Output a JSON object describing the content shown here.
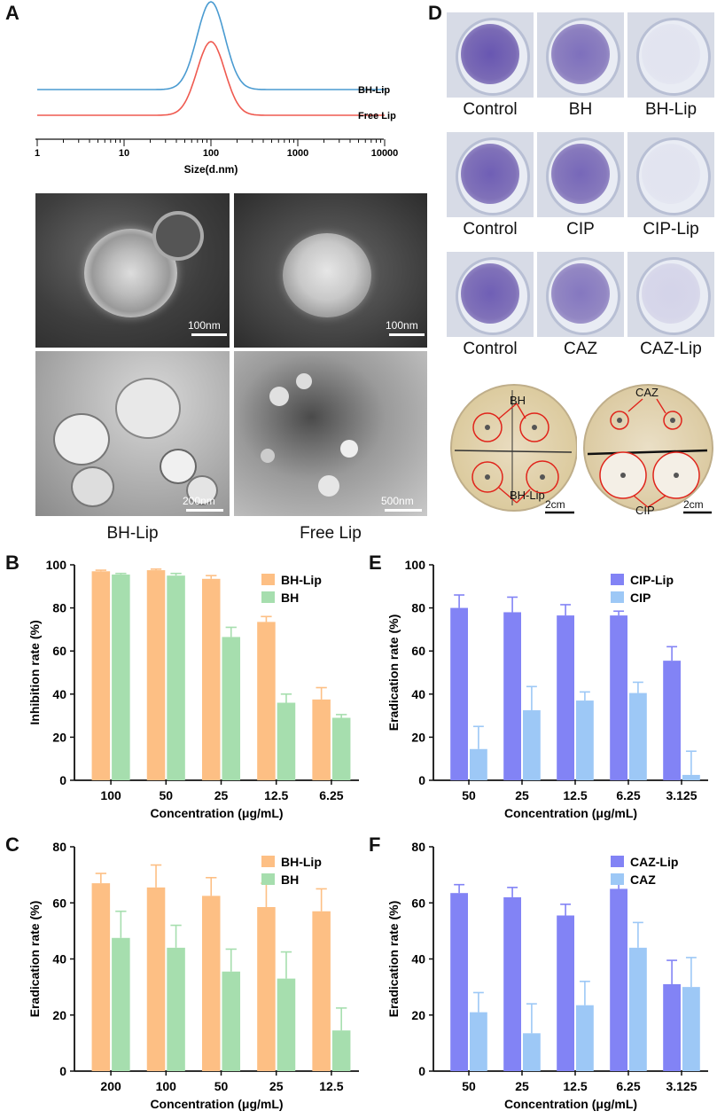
{
  "letters": {
    "a": "A",
    "b": "B",
    "c": "C",
    "d": "D",
    "e": "E",
    "f": "F"
  },
  "colors": {
    "orange": "#fdbf84",
    "green": "#a6deae",
    "purple": "#8283f5",
    "lightblue": "#9dc8f6",
    "dls_blue": "#4a9bd1",
    "dls_red": "#ef5a50",
    "well_purple": "#6e5cae"
  },
  "dls": {
    "series": [
      {
        "name": "BH-Lip",
        "color": "#4a9bd1"
      },
      {
        "name": "Free Lip",
        "color": "#ef5a50"
      }
    ],
    "xlabel": "Size(d.nm)",
    "ticks": [
      "1",
      "10",
      "100",
      "1000",
      "10000"
    ]
  },
  "tem": {
    "scale_bars": [
      "100nm",
      "100nm",
      "200nm",
      "500nm"
    ],
    "captions": [
      "BH-Lip",
      "Free Lip"
    ]
  },
  "wells": {
    "labels": [
      [
        "Control",
        "BH",
        "BH-Lip"
      ],
      [
        "Control",
        "CIP",
        "CIP-Lip"
      ],
      [
        "Control",
        "CAZ",
        "CAZ-Lip"
      ]
    ]
  },
  "plates": {
    "left": {
      "top": "BH",
      "bottom": "BH-Lip",
      "scale": "2cm"
    },
    "right": {
      "top": "CAZ",
      "bottom": "CIP",
      "scale": "2cm"
    }
  },
  "chart_data": [
    {
      "id": "B",
      "type": "bar",
      "categories": [
        "100",
        "50",
        "25",
        "12.5",
        "6.25"
      ],
      "series": [
        {
          "name": "BH-Lip",
          "values": [
            97,
            97.5,
            93.5,
            73.5,
            37.5
          ],
          "errors": [
            0.5,
            0.5,
            1.5,
            2.5,
            5.5
          ]
        },
        {
          "name": "BH",
          "values": [
            95.5,
            95,
            66.5,
            36,
            29
          ],
          "errors": [
            0.5,
            1,
            4.5,
            4,
            1.5
          ]
        }
      ],
      "xlabel": "Concentration (μg/mL)",
      "ylabel": "Inhibition rate (%)",
      "ylim": [
        0,
        100
      ],
      "yticks": [
        0,
        20,
        40,
        60,
        80,
        100
      ],
      "legend": "top-right"
    },
    {
      "id": "C",
      "type": "bar",
      "categories": [
        "200",
        "100",
        "50",
        "25",
        "12.5"
      ],
      "series": [
        {
          "name": "BH-Lip",
          "values": [
            67,
            65.5,
            62.5,
            58.5,
            57
          ],
          "errors": [
            3.5,
            8,
            6.5,
            8.5,
            8
          ]
        },
        {
          "name": "BH",
          "values": [
            47.5,
            44,
            35.5,
            33,
            14.5
          ],
          "errors": [
            9.5,
            8,
            8,
            9.5,
            8
          ]
        }
      ],
      "xlabel": "Concentration (μg/mL)",
      "ylabel": "Eradication rate (%)",
      "ylim": [
        0,
        80
      ],
      "yticks": [
        0,
        20,
        40,
        60,
        80
      ],
      "legend": "top-right"
    },
    {
      "id": "E",
      "type": "bar",
      "categories": [
        "50",
        "25",
        "12.5",
        "6.25",
        "3.125"
      ],
      "series": [
        {
          "name": "CIP-Lip",
          "values": [
            80,
            78,
            76.5,
            76.5,
            55.5
          ],
          "errors": [
            6,
            7,
            5,
            2,
            6.5
          ]
        },
        {
          "name": "CIP",
          "values": [
            14.5,
            32.5,
            37,
            40.5,
            2.5
          ],
          "errors": [
            10.5,
            11,
            4,
            5,
            11
          ]
        }
      ],
      "xlabel": "Concentration (μg/mL)",
      "ylabel": "Eradication rate (%)",
      "ylim": [
        0,
        100
      ],
      "yticks": [
        0,
        20,
        40,
        60,
        80,
        100
      ],
      "legend": "top-right"
    },
    {
      "id": "F",
      "type": "bar",
      "categories": [
        "50",
        "25",
        "12.5",
        "6.25",
        "3.125"
      ],
      "series": [
        {
          "name": "CAZ-Lip",
          "values": [
            63.5,
            62,
            55.5,
            65,
            31
          ],
          "errors": [
            3,
            3.5,
            4,
            4.5,
            8.5
          ]
        },
        {
          "name": "CAZ",
          "values": [
            21,
            13.5,
            23.5,
            44,
            30
          ],
          "errors": [
            7,
            10.5,
            8.5,
            9,
            10.5
          ]
        }
      ],
      "xlabel": "Concentration (μg/mL)",
      "ylabel": "Eradication rate (%)",
      "ylim": [
        0,
        80
      ],
      "yticks": [
        0,
        20,
        40,
        60,
        80
      ],
      "legend": "top-right"
    }
  ]
}
